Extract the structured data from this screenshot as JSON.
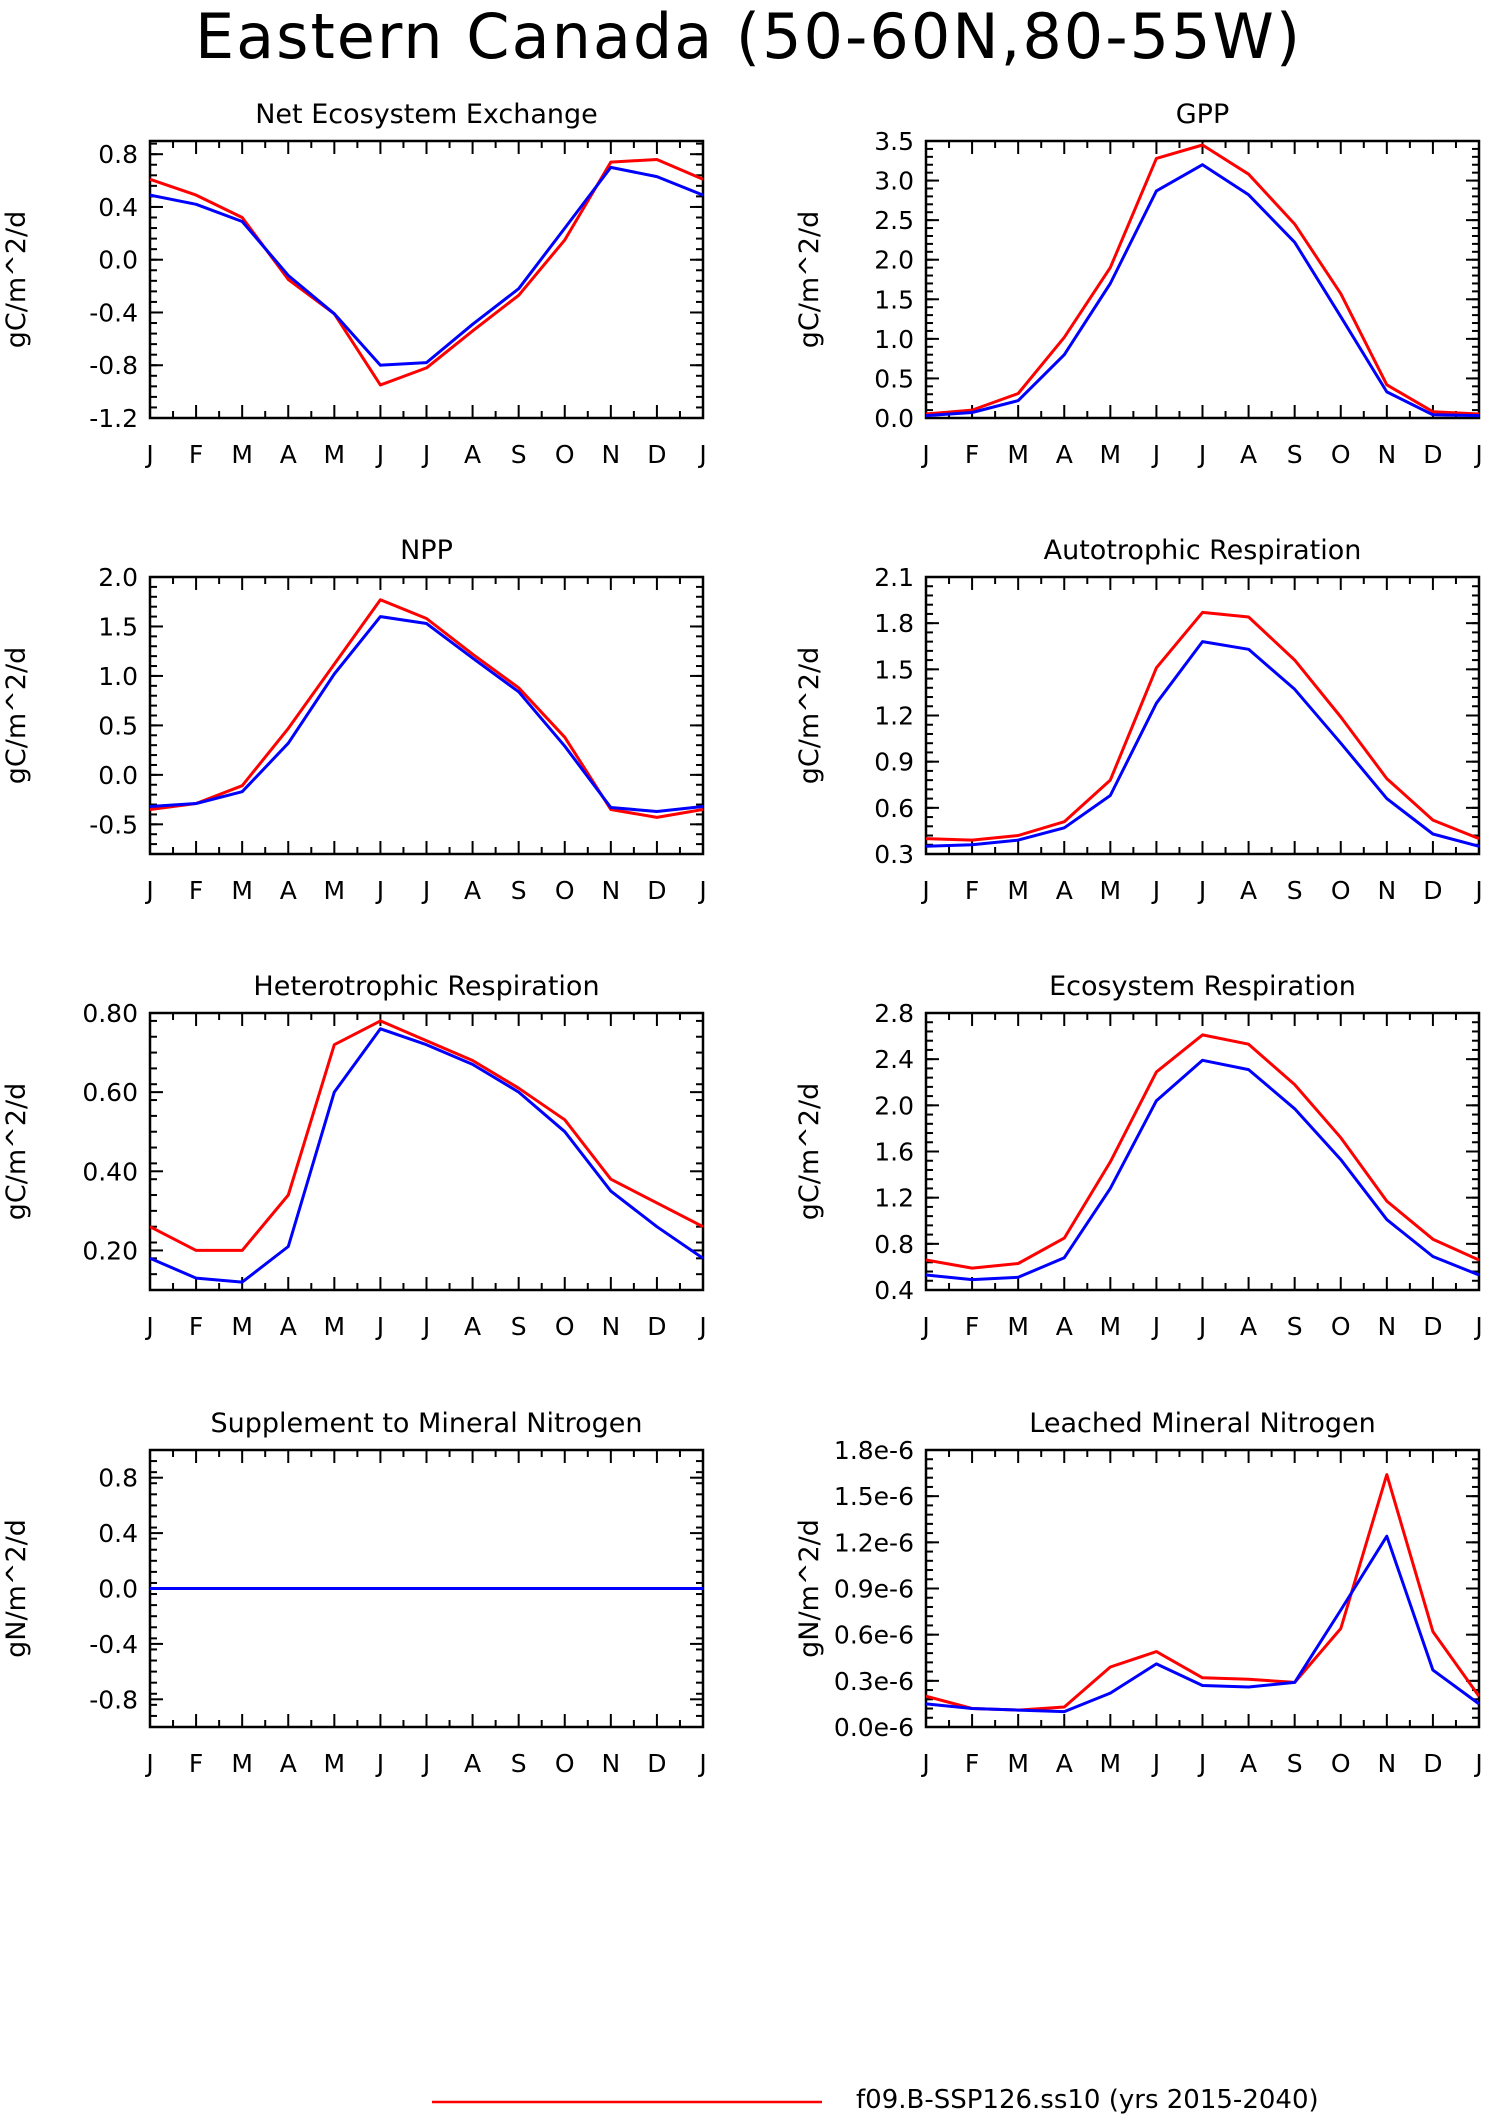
{
  "page": {
    "title": "Eastern Canada (50-60N,80-55W)"
  },
  "colors": {
    "series_a": "#ff0000",
    "series_b": "#0000ff"
  },
  "legend": {
    "items": [
      {
        "label": "f09.B-SSP126.ss10 (yrs 2015-2040)",
        "color": "#ff0000"
      }
    ]
  },
  "chart_data": [
    {
      "type": "line",
      "title": "Net Ecosystem Exchange",
      "ylabel": "gC/m^2/d",
      "categories": [
        "J",
        "F",
        "M",
        "A",
        "M",
        "J",
        "J",
        "A",
        "S",
        "O",
        "N",
        "D",
        "J"
      ],
      "ylim": [
        -1.2,
        0.9
      ],
      "yticks": [
        "0.8",
        "0.4",
        "0.0",
        "-0.4",
        "-0.8",
        "-1.2"
      ],
      "ytick_values": [
        0.8,
        0.4,
        0.0,
        -0.4,
        -0.8,
        -1.2
      ],
      "series": [
        {
          "values": [
            0.61,
            0.49,
            0.32,
            -0.15,
            -0.41,
            -0.95,
            -0.82,
            -0.54,
            -0.27,
            0.15,
            0.74,
            0.76,
            0.61
          ]
        },
        {
          "values": [
            0.49,
            0.42,
            0.29,
            -0.12,
            -0.41,
            -0.8,
            -0.78,
            -0.49,
            -0.22,
            0.24,
            0.7,
            0.63,
            0.49
          ]
        }
      ]
    },
    {
      "type": "line",
      "title": "GPP",
      "ylabel": "gC/m^2/d",
      "categories": [
        "J",
        "F",
        "M",
        "A",
        "M",
        "J",
        "J",
        "A",
        "S",
        "O",
        "N",
        "D",
        "J"
      ],
      "ylim": [
        0.0,
        3.5
      ],
      "yticks": [
        "3.5",
        "3.0",
        "2.5",
        "2.0",
        "1.5",
        "1.0",
        "0.5",
        "0.0"
      ],
      "ytick_values": [
        3.5,
        3.0,
        2.5,
        2.0,
        1.5,
        1.0,
        0.5,
        0.0
      ],
      "series": [
        {
          "values": [
            0.05,
            0.1,
            0.31,
            1.02,
            1.9,
            3.28,
            3.45,
            3.08,
            2.45,
            1.57,
            0.42,
            0.08,
            0.05
          ]
        },
        {
          "values": [
            0.03,
            0.07,
            0.22,
            0.8,
            1.7,
            2.87,
            3.2,
            2.82,
            2.22,
            1.28,
            0.33,
            0.04,
            0.03
          ]
        }
      ]
    },
    {
      "type": "line",
      "title": "NPP",
      "ylabel": "gC/m^2/d",
      "categories": [
        "J",
        "F",
        "M",
        "A",
        "M",
        "J",
        "J",
        "A",
        "S",
        "O",
        "N",
        "D",
        "J"
      ],
      "ylim": [
        -0.8,
        2.0
      ],
      "yticks": [
        "2.0",
        "1.5",
        "1.0",
        "0.5",
        "0.0",
        "-0.5"
      ],
      "ytick_values": [
        2.0,
        1.5,
        1.0,
        0.5,
        0.0,
        -0.5
      ],
      "series": [
        {
          "values": [
            -0.35,
            -0.29,
            -0.11,
            0.47,
            1.12,
            1.77,
            1.58,
            1.22,
            0.88,
            0.38,
            -0.35,
            -0.43,
            -0.35
          ]
        },
        {
          "values": [
            -0.32,
            -0.29,
            -0.17,
            0.32,
            1.02,
            1.6,
            1.53,
            1.18,
            0.84,
            0.29,
            -0.33,
            -0.37,
            -0.32
          ]
        }
      ]
    },
    {
      "type": "line",
      "title": "Autotrophic Respiration",
      "ylabel": "gC/m^2/d",
      "categories": [
        "J",
        "F",
        "M",
        "A",
        "M",
        "J",
        "J",
        "A",
        "S",
        "O",
        "N",
        "D",
        "J"
      ],
      "ylim": [
        0.3,
        2.1
      ],
      "yticks": [
        "2.1",
        "1.8",
        "1.5",
        "1.2",
        "0.9",
        "0.6",
        "0.3"
      ],
      "ytick_values": [
        2.1,
        1.8,
        1.5,
        1.2,
        0.9,
        0.6,
        0.3
      ],
      "series": [
        {
          "values": [
            0.4,
            0.39,
            0.42,
            0.51,
            0.78,
            1.51,
            1.87,
            1.84,
            1.56,
            1.19,
            0.79,
            0.52,
            0.4
          ]
        },
        {
          "values": [
            0.35,
            0.36,
            0.39,
            0.47,
            0.68,
            1.28,
            1.68,
            1.63,
            1.37,
            1.02,
            0.66,
            0.43,
            0.35
          ]
        }
      ]
    },
    {
      "type": "line",
      "title": "Heterotrophic Respiration",
      "ylabel": "gC/m^2/d",
      "categories": [
        "J",
        "F",
        "M",
        "A",
        "M",
        "J",
        "J",
        "A",
        "S",
        "O",
        "N",
        "D",
        "J"
      ],
      "ylim": [
        0.1,
        0.8
      ],
      "yticks": [
        "0.80",
        "0.60",
        "0.40",
        "0.20"
      ],
      "ytick_values": [
        0.8,
        0.6,
        0.4,
        0.2
      ],
      "series": [
        {
          "values": [
            0.26,
            0.2,
            0.2,
            0.34,
            0.72,
            0.78,
            0.73,
            0.68,
            0.61,
            0.53,
            0.38,
            0.32,
            0.26
          ]
        },
        {
          "values": [
            0.18,
            0.13,
            0.12,
            0.21,
            0.6,
            0.76,
            0.72,
            0.67,
            0.6,
            0.5,
            0.35,
            0.26,
            0.18
          ]
        }
      ]
    },
    {
      "type": "line",
      "title": "Ecosystem Respiration",
      "ylabel": "gC/m^2/d",
      "categories": [
        "J",
        "F",
        "M",
        "A",
        "M",
        "J",
        "J",
        "A",
        "S",
        "O",
        "N",
        "D",
        "J"
      ],
      "ylim": [
        0.4,
        2.8
      ],
      "yticks": [
        "2.8",
        "2.4",
        "2.0",
        "1.6",
        "1.2",
        "0.8",
        "0.4"
      ],
      "ytick_values": [
        2.8,
        2.4,
        2.0,
        1.6,
        1.2,
        0.8,
        0.4
      ],
      "series": [
        {
          "values": [
            0.66,
            0.59,
            0.63,
            0.85,
            1.51,
            2.29,
            2.61,
            2.53,
            2.18,
            1.72,
            1.17,
            0.84,
            0.66
          ]
        },
        {
          "values": [
            0.53,
            0.49,
            0.51,
            0.68,
            1.28,
            2.04,
            2.39,
            2.31,
            1.97,
            1.53,
            1.01,
            0.69,
            0.53
          ]
        }
      ]
    },
    {
      "type": "line",
      "title": "Supplement to Mineral Nitrogen",
      "ylabel": "gN/m^2/d",
      "categories": [
        "J",
        "F",
        "M",
        "A",
        "M",
        "J",
        "J",
        "A",
        "S",
        "O",
        "N",
        "D",
        "J"
      ],
      "ylim": [
        -1.0,
        1.0
      ],
      "yticks": [
        "0.8",
        "0.4",
        "0.0",
        "-0.4",
        "-0.8"
      ],
      "ytick_values": [
        0.8,
        0.4,
        0.0,
        -0.4,
        -0.8
      ],
      "series": [
        {
          "values": [
            0,
            0,
            0,
            0,
            0,
            0,
            0,
            0,
            0,
            0,
            0,
            0,
            0
          ]
        },
        {
          "values": [
            0,
            0,
            0,
            0,
            0,
            0,
            0,
            0,
            0,
            0,
            0,
            0,
            0
          ]
        }
      ]
    },
    {
      "type": "line",
      "title": "Leached Mineral Nitrogen",
      "ylabel": "gN/m^2/d",
      "categories": [
        "J",
        "F",
        "M",
        "A",
        "M",
        "J",
        "J",
        "A",
        "S",
        "O",
        "N",
        "D",
        "J"
      ],
      "ylim": [
        0.0,
        1.8e-06
      ],
      "yticks": [
        "1.8e-6",
        "1.5e-6",
        "1.2e-6",
        "0.9e-6",
        "0.6e-6",
        "0.3e-6",
        "0.0e-6"
      ],
      "ytick_values": [
        1.8e-06,
        1.5e-06,
        1.2e-06,
        9e-07,
        6e-07,
        3e-07,
        0.0
      ],
      "series": [
        {
          "values": [
            2e-07,
            1.2e-07,
            1.1e-07,
            1.3e-07,
            3.9e-07,
            4.9e-07,
            3.2e-07,
            3.1e-07,
            2.9e-07,
            6.4e-07,
            1.64e-06,
            6.2e-07,
            2e-07
          ]
        },
        {
          "values": [
            1.5e-07,
            1.2e-07,
            1.1e-07,
            1e-07,
            2.2e-07,
            4.1e-07,
            2.7e-07,
            2.6e-07,
            2.9e-07,
            7.6e-07,
            1.24e-06,
            3.7e-07,
            1.5e-07
          ]
        }
      ]
    }
  ]
}
